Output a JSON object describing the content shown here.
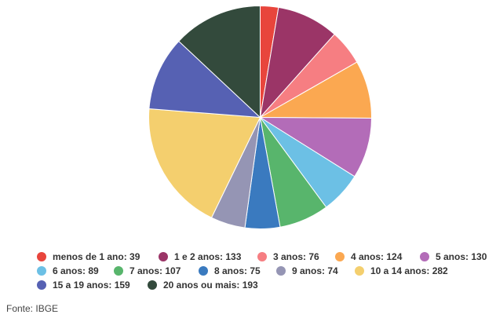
{
  "chart_data": {
    "type": "pie",
    "categories": [
      "menos de 1 ano",
      "1 e 2 anos",
      "3 anos",
      "4 anos",
      "5 anos",
      "6 anos",
      "7 anos",
      "8 anos",
      "9 anos",
      "10 a 14 anos",
      "15 a 19 anos",
      "20 anos ou mais"
    ],
    "values": [
      39,
      133,
      76,
      124,
      130,
      89,
      107,
      75,
      74,
      282,
      159,
      193
    ],
    "colors": [
      "#e8453c",
      "#9b3567",
      "#f67e82",
      "#fba851",
      "#b36cb8",
      "#6cc0e5",
      "#58b56c",
      "#3a7abf",
      "#9595b4",
      "#f4cf6e",
      "#5661b3",
      "#334a3c"
    ],
    "legend": {
      "position": "bottom",
      "items": [
        {
          "label": "menos de 1 ano: 39"
        },
        {
          "label": "1 e 2 anos: 133"
        },
        {
          "label": "3 anos: 76"
        },
        {
          "label": "4 anos: 124"
        },
        {
          "label": "5 anos: 130"
        },
        {
          "label": "6 anos: 89"
        },
        {
          "label": "7 anos: 107"
        },
        {
          "label": "8 anos: 75"
        },
        {
          "label": "9 anos: 74"
        },
        {
          "label": "10 a 14 anos: 282"
        },
        {
          "label": "15 a 19 anos: 159"
        },
        {
          "label": "20 anos ou mais: 193"
        }
      ]
    }
  },
  "source": "Fonte: IBGE"
}
